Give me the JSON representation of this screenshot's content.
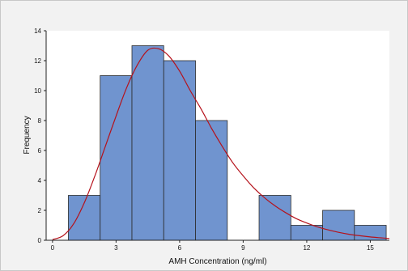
{
  "chart_data": {
    "type": "bar",
    "subtype": "histogram-with-fitted-curve",
    "title": "",
    "xlabel": "AMH Concentration (ng/ml)",
    "ylabel": "Frequency",
    "xlim": [
      -0.3,
      15.9
    ],
    "ylim": [
      0,
      14
    ],
    "xticks": [
      0,
      3,
      6,
      9,
      12,
      15
    ],
    "yticks": [
      0,
      2,
      4,
      6,
      8,
      10,
      12,
      14
    ],
    "bin_width": 1.5,
    "bins": [
      {
        "start": 0.75,
        "end": 2.25,
        "count": 3
      },
      {
        "start": 2.25,
        "end": 3.75,
        "count": 11
      },
      {
        "start": 3.75,
        "end": 5.25,
        "count": 13
      },
      {
        "start": 5.25,
        "end": 6.75,
        "count": 12
      },
      {
        "start": 6.75,
        "end": 8.25,
        "count": 8
      },
      {
        "start": 8.25,
        "end": 9.75,
        "count": 0
      },
      {
        "start": 9.75,
        "end": 11.25,
        "count": 3
      },
      {
        "start": 11.25,
        "end": 12.75,
        "count": 1
      },
      {
        "start": 12.75,
        "end": 14.25,
        "count": 2
      },
      {
        "start": 14.25,
        "end": 15.75,
        "count": 1
      }
    ],
    "fitted_curve": {
      "type": "density-fit",
      "points": [
        [
          0.0,
          0.05
        ],
        [
          0.5,
          0.3
        ],
        [
          1.0,
          1.1
        ],
        [
          1.5,
          2.5
        ],
        [
          2.0,
          4.3
        ],
        [
          2.5,
          6.3
        ],
        [
          3.0,
          8.3
        ],
        [
          3.5,
          10.2
        ],
        [
          4.0,
          11.7
        ],
        [
          4.5,
          12.7
        ],
        [
          5.0,
          12.8
        ],
        [
          5.5,
          12.3
        ],
        [
          6.0,
          11.3
        ],
        [
          6.5,
          10.0
        ],
        [
          7.0,
          8.8
        ],
        [
          7.5,
          7.5
        ],
        [
          8.0,
          6.3
        ],
        [
          8.5,
          5.2
        ],
        [
          9.0,
          4.3
        ],
        [
          9.5,
          3.5
        ],
        [
          10.0,
          2.85
        ],
        [
          10.5,
          2.3
        ],
        [
          11.0,
          1.85
        ],
        [
          11.5,
          1.45
        ],
        [
          12.0,
          1.15
        ],
        [
          12.5,
          0.9
        ],
        [
          13.0,
          0.7
        ],
        [
          13.5,
          0.53
        ],
        [
          14.0,
          0.4
        ],
        [
          14.5,
          0.3
        ],
        [
          15.0,
          0.22
        ],
        [
          15.5,
          0.16
        ],
        [
          15.9,
          0.12
        ]
      ]
    },
    "grid": false,
    "legend": "none",
    "colors": {
      "bar_fill": "#7094cf",
      "bar_stroke": "#2b2b2b",
      "curve": "#b5121b",
      "plot_background": "#ffffff",
      "frame_background": "#f2f2f2"
    }
  }
}
